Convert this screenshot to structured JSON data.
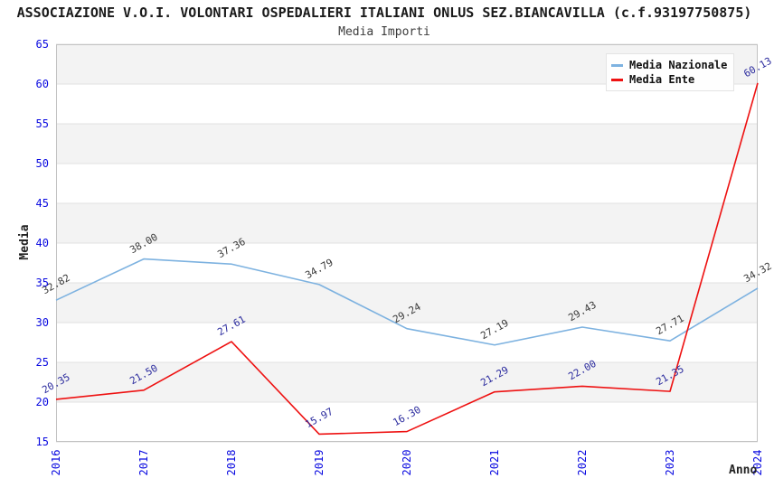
{
  "header": {
    "title": "ASSOCIAZIONE V.O.I. VOLONTARI OSPEDALIERI ITALIANI ONLUS SEZ.BIANCAVILLA (c.f.93197750875)",
    "subtitle": "Media Importi"
  },
  "chart_data": {
    "type": "line",
    "title": "Media Importi",
    "xlabel": "Anno",
    "ylabel": "Media",
    "categories": [
      "2016",
      "2017",
      "2018",
      "2019",
      "2020",
      "2021",
      "2022",
      "2023",
      "2024"
    ],
    "ylim": [
      15,
      65
    ],
    "ytick_step": 5,
    "y_ticks": [
      15,
      20,
      25,
      30,
      35,
      40,
      45,
      50,
      55,
      60,
      65
    ],
    "grid": "horizontal gridlines with alternating gray/white bands every 5 units",
    "legend_position": "top-right",
    "series": [
      {
        "name": "Media Nazionale",
        "color": "#7db2e0",
        "label_color": "#3a3a3a",
        "values": [
          32.82,
          38.0,
          37.36,
          34.79,
          29.24,
          27.19,
          29.43,
          27.71,
          34.32
        ]
      },
      {
        "name": "Media Ente",
        "color": "#ee1111",
        "label_color": "#2b2b9e",
        "values": [
          20.35,
          21.5,
          27.61,
          15.97,
          16.3,
          21.29,
          22.0,
          21.35,
          60.13
        ]
      }
    ]
  },
  "style": {
    "tick_color": "#0a0ae0",
    "band_gray": "#f3f3f3",
    "gridline_color": "#e1e1e1",
    "plot_border_color": "#c2c2c2"
  }
}
